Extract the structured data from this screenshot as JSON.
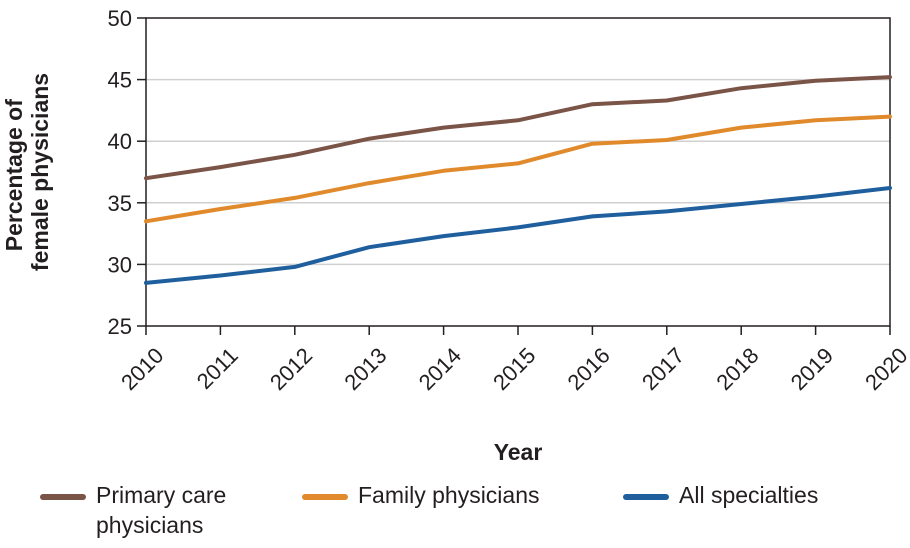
{
  "chart_data": {
    "type": "line",
    "x": [
      "2010",
      "2011",
      "2012",
      "2013",
      "2014",
      "2015",
      "2016",
      "2017",
      "2018",
      "2019",
      "2020"
    ],
    "xlabel": "Year",
    "ylabel": "Percentage of female physicians",
    "ylabel_lines": [
      "Percentage of",
      "female physicians"
    ],
    "ylim": [
      25,
      50
    ],
    "yticks": [
      25,
      30,
      35,
      40,
      45,
      50
    ],
    "grid": "horizontal",
    "legend_position": "bottom",
    "series": [
      {
        "name": "Primary care physicians",
        "color": "#7b5448",
        "values": [
          37.0,
          37.9,
          38.9,
          40.2,
          41.1,
          41.7,
          43.0,
          43.3,
          44.3,
          44.9,
          45.2
        ]
      },
      {
        "name": "Family physicians",
        "color": "#e08a2c",
        "values": [
          33.5,
          34.5,
          35.4,
          36.6,
          37.6,
          38.2,
          39.8,
          40.1,
          41.1,
          41.7,
          42.0
        ]
      },
      {
        "name": "All specialties",
        "color": "#1f5f9e",
        "values": [
          28.5,
          29.1,
          29.8,
          31.4,
          32.3,
          33.0,
          33.9,
          34.3,
          34.9,
          35.5,
          36.2
        ]
      }
    ]
  },
  "legend": {
    "primary_care_line1": "Primary care",
    "primary_care_line2": "physicians",
    "family": "Family physicians",
    "all": "All specialties"
  }
}
